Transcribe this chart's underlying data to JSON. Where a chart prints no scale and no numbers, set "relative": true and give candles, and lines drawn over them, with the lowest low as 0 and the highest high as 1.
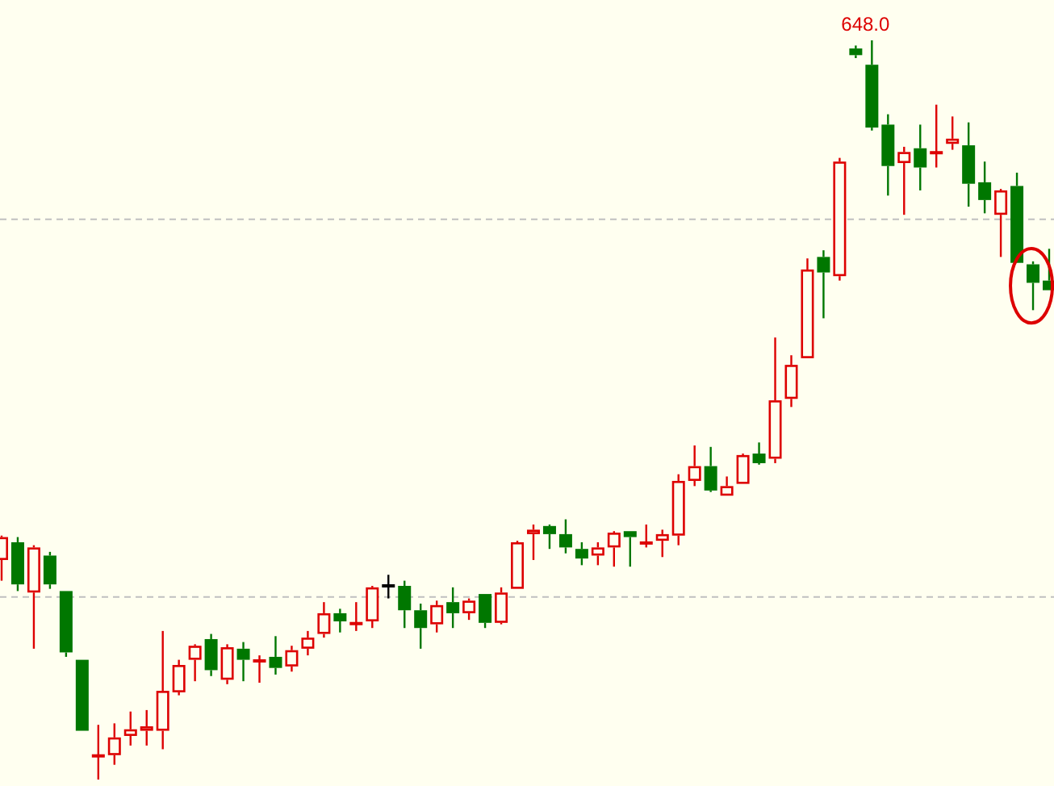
{
  "chart_data": {
    "type": "candlestick",
    "relative": true,
    "categories": [
      null,
      null,
      null,
      null,
      null,
      null,
      null,
      null,
      null,
      null,
      null,
      null,
      null,
      null,
      null,
      null,
      null,
      null,
      null,
      null,
      null,
      null,
      null,
      null,
      null,
      null,
      null,
      null,
      null,
      null,
      null,
      null,
      null,
      null,
      null,
      null,
      null,
      null,
      null,
      null,
      null,
      null,
      null,
      null,
      null,
      null,
      null,
      null,
      null,
      null,
      null,
      null,
      null,
      null,
      null,
      null,
      null,
      null,
      null,
      null,
      null,
      null,
      null,
      null,
      null,
      null
    ],
    "ohlc": [
      [
        0.297,
        0.33,
        0.269,
        0.328
      ],
      [
        0.321,
        0.328,
        0.255,
        0.264
      ],
      [
        0.253,
        0.317,
        0.177,
        0.314
      ],
      [
        0.303,
        0.308,
        0.258,
        0.264
      ],
      [
        0.255,
        0.255,
        0.166,
        0.172
      ],
      [
        0.162,
        0.162,
        0.066,
        0.066
      ],
      [
        0.031,
        0.074,
        0,
        0.033
      ],
      [
        0.033,
        0.076,
        0.02,
        0.057
      ],
      [
        0.059,
        0.092,
        0.046,
        0.068
      ],
      [
        0.066,
        0.094,
        0.046,
        0.072
      ],
      [
        0.066,
        0.201,
        0.041,
        0.12
      ],
      [
        0.118,
        0.162,
        0.114,
        0.155
      ],
      [
        0.162,
        0.183,
        0.133,
        0.181
      ],
      [
        0.19,
        0.197,
        0.14,
        0.148
      ],
      [
        0.135,
        0.183,
        0.129,
        0.179
      ],
      [
        0.177,
        0.186,
        0.133,
        0.162
      ],
      [
        0.159,
        0.168,
        0.131,
        0.162
      ],
      [
        0.166,
        0.194,
        0.142,
        0.151
      ],
      [
        0.153,
        0.181,
        0.146,
        0.175
      ],
      [
        0.177,
        0.201,
        0.168,
        0.192
      ],
      [
        0.197,
        0.24,
        0.192,
        0.225
      ],
      [
        0.225,
        0.231,
        0.199,
        0.214
      ],
      [
        0.21,
        0.24,
        0.201,
        0.212
      ],
      [
        0.214,
        0.262,
        0.205,
        0.26
      ],
      [
        0.262,
        0.277,
        0.245,
        0.262
      ],
      [
        0.262,
        0.269,
        0.205,
        0.229
      ],
      [
        0.229,
        0.238,
        0.177,
        0.205
      ],
      [
        0.21,
        0.242,
        0.199,
        0.236
      ],
      [
        0.24,
        0.26,
        0.205,
        0.225
      ],
      [
        0.225,
        0.245,
        0.216,
        0.242
      ],
      [
        0.251,
        0.251,
        0.205,
        0.212
      ],
      [
        0.212,
        0.26,
        0.21,
        0.253
      ],
      [
        0.258,
        0.323,
        0.258,
        0.321
      ],
      [
        0.332,
        0.345,
        0.297,
        0.338
      ],
      [
        0.343,
        0.345,
        0.312,
        0.332
      ],
      [
        0.332,
        0.352,
        0.306,
        0.314
      ],
      [
        0.312,
        0.321,
        0.29,
        0.299
      ],
      [
        0.303,
        0.321,
        0.29,
        0.314
      ],
      [
        0.314,
        0.336,
        0.288,
        0.334
      ],
      [
        0.336,
        0.336,
        0.288,
        0.328
      ],
      [
        0.319,
        0.345,
        0.314,
        0.321
      ],
      [
        0.323,
        0.338,
        0.301,
        0.332
      ],
      [
        0.33,
        0.413,
        0.317,
        0.404
      ],
      [
        0.404,
        0.452,
        0.397,
        0.424
      ],
      [
        0.424,
        0.45,
        0.389,
        0.391
      ],
      [
        0.384,
        0.41,
        0.384,
        0.397
      ],
      [
        0.4,
        0.441,
        0.4,
        0.439
      ],
      [
        0.441,
        0.456,
        0.426,
        0.428
      ],
      [
        0.434,
        0.598,
        0.428,
        0.513
      ],
      [
        0.515,
        0.574,
        0.504,
        0.561
      ],
      [
        0.57,
        0.705,
        0.57,
        0.69
      ],
      [
        0.707,
        0.716,
        0.624,
        0.686
      ],
      [
        0.681,
        0.841,
        0.675,
        0.836
      ],
      [
        0.989,
        0.993,
        0.976,
        0.98
      ],
      [
        0.967,
        1,
        0.878,
        0.882
      ],
      [
        0.886,
        0.9,
        0.79,
        0.83
      ],
      [
        0.834,
        0.856,
        0.764,
        0.849
      ],
      [
        0.854,
        0.886,
        0.797,
        0.828
      ],
      [
        0.847,
        0.913,
        0.828,
        0.849
      ],
      [
        0.86,
        0.897,
        0.852,
        0.867
      ],
      [
        0.858,
        0.889,
        0.775,
        0.806
      ],
      [
        0.808,
        0.836,
        0.766,
        0.784
      ],
      [
        0.764,
        0.799,
        0.707,
        0.797
      ],
      [
        0.803,
        0.821,
        0.699,
        0.699
      ],
      [
        0.697,
        0.701,
        0.635,
        0.672
      ],
      [
        0.675,
        0.718,
        0.662,
        0.662
      ]
    ],
    "colors": [
      "#dd0000",
      "#007700",
      "#dd0000",
      "#007700",
      "#007700",
      "#007700",
      "#dd0000",
      "#dd0000",
      "#dd0000",
      "#dd0000",
      "#dd0000",
      "#dd0000",
      "#dd0000",
      "#007700",
      "#dd0000",
      "#007700",
      "#dd0000",
      "#007700",
      "#dd0000",
      "#dd0000",
      "#dd0000",
      "#007700",
      "#dd0000",
      "#dd0000",
      "#000000",
      "#007700",
      "#007700",
      "#dd0000",
      "#007700",
      "#dd0000",
      "#007700",
      "#dd0000",
      "#dd0000",
      "#dd0000",
      "#007700",
      "#007700",
      "#007700",
      "#dd0000",
      "#dd0000",
      "#007700",
      "#dd0000",
      "#dd0000",
      "#dd0000",
      "#dd0000",
      "#007700",
      "#dd0000",
      "#dd0000",
      "#007700",
      "#dd0000",
      "#dd0000",
      "#dd0000",
      "#007700",
      "#dd0000",
      "#007700",
      "#007700",
      "#007700",
      "#dd0000",
      "#007700",
      "#dd0000",
      "#dd0000",
      "#007700",
      "#007700",
      "#dd0000",
      "#007700",
      "#007700",
      "#007700"
    ],
    "annotations": [
      "648.0"
    ],
    "ref_lines": [
      {
        "axis": "y",
        "value": 0.758,
        "color": "#c0c0c0",
        "line_style": "dashed"
      },
      {
        "axis": "y",
        "value": 0.247,
        "color": "#c0c0c0",
        "line_style": "dashed"
      }
    ]
  }
}
